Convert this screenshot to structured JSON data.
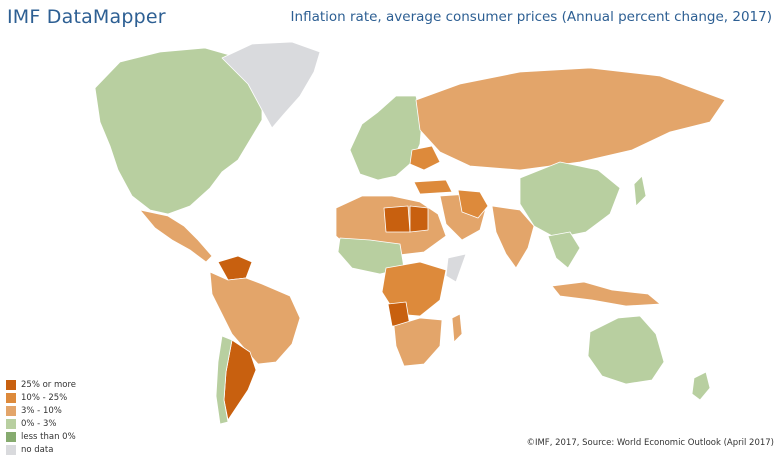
{
  "header": {
    "brand": "IMF DataMapper",
    "title": "Inflation rate, average consumer prices (Annual percent change, 2017)"
  },
  "legend": [
    {
      "label": "25% or more",
      "color": "#c8600f"
    },
    {
      "label": "10% - 25%",
      "color": "#dd8a3b"
    },
    {
      "label": "3% - 10%",
      "color": "#e3a56a"
    },
    {
      "label": "0% - 3%",
      "color": "#b8cfa0"
    },
    {
      "label": "less than 0%",
      "color": "#86ab6f"
    },
    {
      "label": "no data",
      "color": "#d9dadd"
    }
  ],
  "footer": {
    "source": "©IMF, 2017, Source: World Economic Outlook (April 2017)"
  }
}
